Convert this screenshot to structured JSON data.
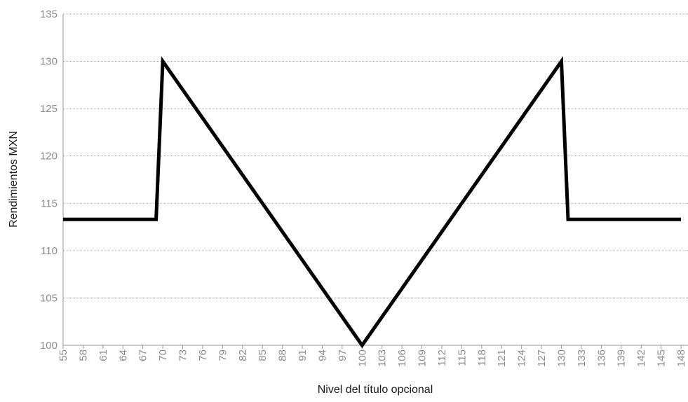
{
  "chart_data": {
    "type": "line",
    "xlabel": "Nivel del título opcional",
    "ylabel": "Rendimientos MXN",
    "ylim": [
      100,
      135
    ],
    "xlim": [
      55,
      148
    ],
    "yticks": [
      100,
      105,
      110,
      115,
      120,
      125,
      130,
      135
    ],
    "xticks": [
      55,
      58,
      61,
      64,
      67,
      70,
      73,
      76,
      79,
      82,
      85,
      88,
      91,
      94,
      97,
      100,
      103,
      106,
      109,
      112,
      115,
      118,
      121,
      124,
      127,
      130,
      133,
      136,
      139,
      142,
      145,
      148
    ],
    "grid": true,
    "legend": "none",
    "series": [
      {
        "color": "#000000",
        "x": [
          55,
          69,
          70,
          100,
          130,
          131,
          148
        ],
        "y": [
          113.3,
          113.3,
          130,
          100,
          130,
          113.3,
          113.3
        ]
      }
    ]
  }
}
